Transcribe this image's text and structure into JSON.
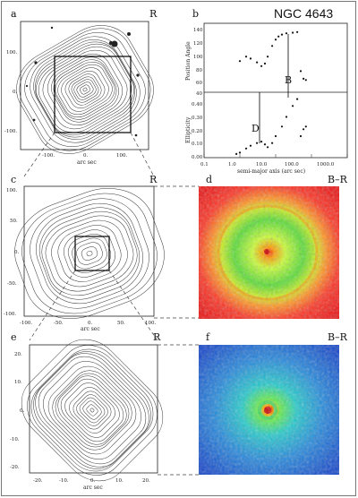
{
  "title": "NGC 4643",
  "panels": {
    "a": {
      "label": "a",
      "band": "R",
      "x_ticks": [
        "-100.",
        "0.",
        "100."
      ],
      "y_ticks": [
        "100.",
        "0.",
        "-100."
      ],
      "xlabel": "arc sec"
    },
    "b": {
      "label": "b",
      "top_ylabel": "Position Angle",
      "top_ticks": [
        "140",
        "120",
        "100",
        "80",
        "60",
        "40"
      ],
      "bottom_ylabel": "Ellipticity",
      "bottom_ticks": [
        "0.40",
        "0.30",
        "0.20",
        "0.10",
        "0.00"
      ],
      "x_ticks": [
        "0.1",
        "1.0",
        "10.0",
        "100.0",
        "1000.0"
      ],
      "xlabel": "semi-major axis (arc sec)",
      "marker_B": "B",
      "marker_D": "D"
    },
    "c": {
      "label": "c",
      "band": "R",
      "x_ticks": [
        "-100.",
        "-50.",
        "0.",
        "50.",
        "100."
      ],
      "y_ticks": [
        "100.",
        "50.",
        "0.",
        "-50.",
        "-100."
      ],
      "xlabel": "arc sec"
    },
    "d": {
      "label": "d",
      "band": "B–R"
    },
    "e": {
      "label": "e",
      "band": "R",
      "x_ticks": [
        "-20.",
        "-10.",
        "0.",
        "10.",
        "20."
      ],
      "y_ticks": [
        "20.",
        "10.",
        "0.",
        "-10.",
        "-20."
      ],
      "xlabel": "arc sec"
    },
    "f": {
      "label": "f",
      "band": "B–R"
    }
  },
  "chart_data": {
    "type": "scatter",
    "title": "NGC 4643",
    "xlabel": "semi-major axis (arc sec)",
    "xscale": "log",
    "xlim": [
      0.1,
      1000
    ],
    "series": [
      {
        "name": "Position Angle",
        "ylim": [
          40,
          145
        ],
        "x": [
          1.0,
          1.5,
          2.0,
          3.0,
          4.0,
          5.0,
          6.0,
          8.0,
          10.0,
          12.0,
          15.0,
          20.0,
          30.0,
          40.0,
          50.0,
          60.0,
          70.0
        ],
        "y": [
          88,
          95,
          92,
          86,
          80,
          84,
          95,
          112,
          122,
          127,
          130,
          132,
          133,
          134,
          72,
          60,
          58
        ]
      },
      {
        "name": "Ellipticity",
        "ylim": [
          0,
          0.45
        ],
        "x": [
          0.8,
          1.0,
          1.5,
          2.0,
          3.0,
          4.0,
          5.0,
          6.0,
          8.0,
          10.0,
          15.0,
          20.0,
          30.0,
          40.0,
          50.0,
          60.0,
          70.0
        ],
        "y": [
          0.02,
          0.03,
          0.06,
          0.08,
          0.1,
          0.11,
          0.09,
          0.07,
          0.1,
          0.15,
          0.22,
          0.29,
          0.37,
          0.42,
          0.15,
          0.2,
          0.22
        ]
      }
    ]
  }
}
